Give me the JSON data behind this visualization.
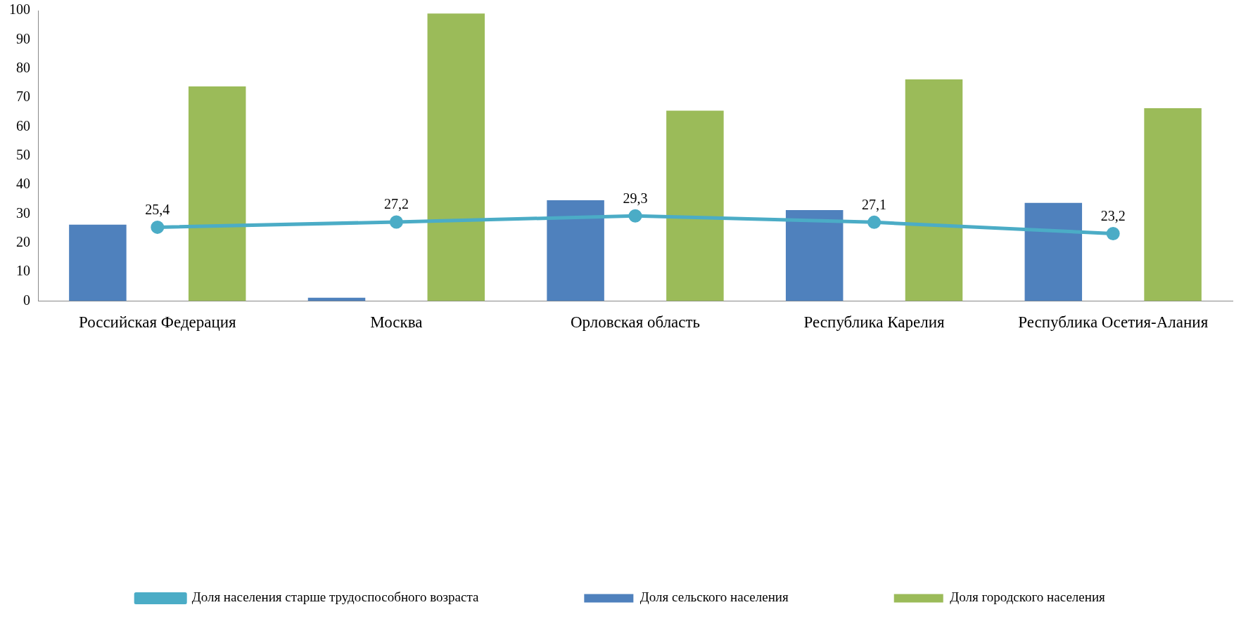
{
  "chart_data": {
    "type": "bar",
    "categories": [
      "Российская Федерация",
      "Москва",
      "Орловская область",
      "Республика Карелия",
      "Республика Осетия-Алания"
    ],
    "series": [
      {
        "name": "Доля сельского населения",
        "color": "#4f81bd",
        "values": [
          26.3,
          1.1,
          34.7,
          31.3,
          33.8
        ]
      },
      {
        "name": "Доля городского населения",
        "color": "#9bbb59",
        "values": [
          73.9,
          99.0,
          65.5,
          76.3,
          66.4
        ]
      },
      {
        "name": "Доля населения старше трудоспособного возраста",
        "type": "line",
        "color": "#4bacc6",
        "marker": "circle",
        "values": [
          25.4,
          27.2,
          29.3,
          27.1,
          23.2
        ],
        "value_labels": [
          "25,4",
          "27,2",
          "29,3",
          "27,1",
          "23,2"
        ]
      }
    ],
    "ylim": [
      0,
      100
    ],
    "yticks": [
      0,
      10,
      20,
      30,
      40,
      50,
      60,
      70,
      80,
      90,
      100
    ],
    "grid": false,
    "legend": "bottom"
  }
}
